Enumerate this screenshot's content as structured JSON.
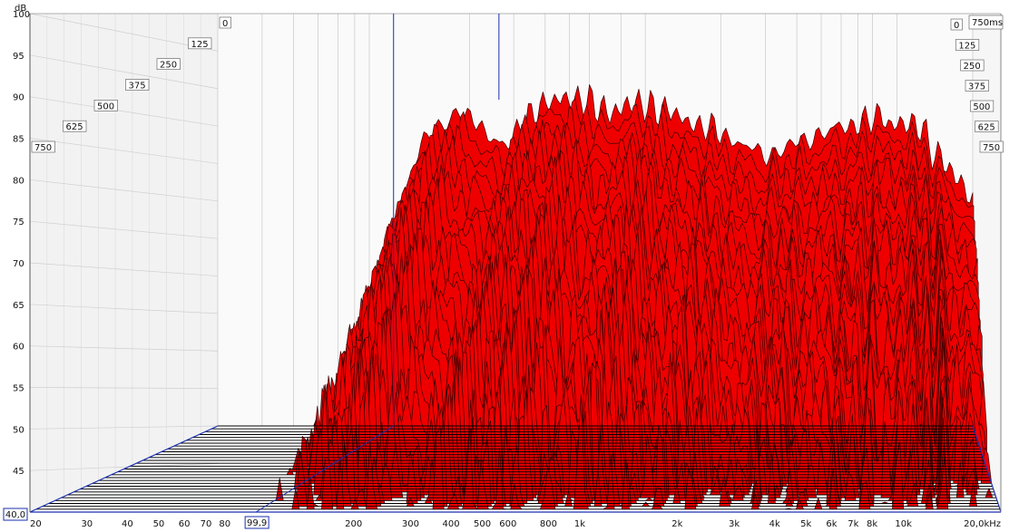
{
  "chart_data": {
    "type": "waterfall",
    "y_unit": "dB",
    "ylim": [
      40,
      100
    ],
    "y_ticks": [
      "100",
      "95",
      "90",
      "85",
      "80",
      "75",
      "70",
      "65",
      "60",
      "55",
      "50",
      "45"
    ],
    "y_floor_label": "40,0",
    "x_unit": "Hz",
    "xlim": [
      20,
      20000
    ],
    "x_scale": "log",
    "x_ticks": [
      {
        "v": 20,
        "t": "20"
      },
      {
        "v": 30,
        "t": "30"
      },
      {
        "v": 40,
        "t": "40"
      },
      {
        "v": 50,
        "t": "50"
      },
      {
        "v": 60,
        "t": "60"
      },
      {
        "v": 70,
        "t": "70"
      },
      {
        "v": 80,
        "t": "80"
      },
      {
        "v": 200,
        "t": "200"
      },
      {
        "v": 300,
        "t": "300"
      },
      {
        "v": 400,
        "t": "400"
      },
      {
        "v": 500,
        "t": "500"
      },
      {
        "v": 600,
        "t": "600"
      },
      {
        "v": 800,
        "t": "800"
      },
      {
        "v": 1000,
        "t": "1k"
      },
      {
        "v": 2000,
        "t": "2k"
      },
      {
        "v": 3000,
        "t": "3k"
      },
      {
        "v": 4000,
        "t": "4k"
      },
      {
        "v": 5000,
        "t": "5k"
      },
      {
        "v": 6000,
        "t": "6k"
      },
      {
        "v": 7000,
        "t": "7k"
      },
      {
        "v": 8000,
        "t": "8k"
      },
      {
        "v": 10000,
        "t": "10k"
      },
      {
        "v": 20000,
        "t": "20,0kHz"
      }
    ],
    "cursor_freq_label": "99,9",
    "cursor_freq": 99.9,
    "cursor_freq2": 262,
    "time_unit": "ms",
    "time_max_label": "750ms",
    "time_ticks_left": [
      "0",
      "125",
      "250",
      "375",
      "500",
      "625",
      "750"
    ],
    "time_ticks_right": [
      "0",
      "125",
      "250",
      "375",
      "500",
      "625",
      "750"
    ],
    "slices": 30,
    "peak_level_db": 93.5,
    "envelope": [
      [
        20,
        40
      ],
      [
        40,
        45
      ],
      [
        60,
        52
      ],
      [
        80,
        67
      ],
      [
        100,
        77
      ],
      [
        130,
        88
      ],
      [
        180,
        92
      ],
      [
        220,
        90
      ],
      [
        280,
        87
      ],
      [
        350,
        92
      ],
      [
        500,
        94
      ],
      [
        700,
        92
      ],
      [
        1000,
        93
      ],
      [
        2000,
        89
      ],
      [
        3000,
        86
      ],
      [
        5000,
        89
      ],
      [
        8000,
        91
      ],
      [
        12000,
        90
      ],
      [
        20000,
        80
      ]
    ],
    "fill_color": "#ee0000",
    "line_color": "#3a0000",
    "background_color": "#ffffff",
    "grid_color": "#c8c8c8",
    "axis_color": "#1a2fb0"
  }
}
